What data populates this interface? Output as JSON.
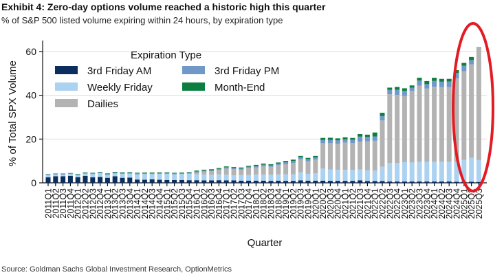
{
  "title": "Exhibit 4: Zero-day options volume reached a historic high this quarter",
  "subtitle": "% of S&P 500 listed volume expiring within 24 hours, by expiration type",
  "source": "Source: Goldman Sachs Global Investment Research, OptionMetrics",
  "chart_data": {
    "type": "bar",
    "stacked": true,
    "xlabel": "Quarter",
    "ylabel": "% of Total SPX Volume",
    "ylim": [
      0,
      65
    ],
    "yticks": [
      0,
      20,
      40,
      60
    ],
    "grid": "horizontal",
    "legend_title": "Expiration Type",
    "legend_position": "top-left",
    "annotation": "red ellipse highlighting 2024Q4-2025Q3",
    "categories": [
      "2011Q1",
      "2011Q2",
      "2011Q3",
      "2011Q4",
      "2012Q1",
      "2012Q2",
      "2012Q3",
      "2012Q4",
      "2013Q1",
      "2013Q2",
      "2013Q3",
      "2013Q4",
      "2014Q1",
      "2014Q2",
      "2014Q3",
      "2014Q4",
      "2015Q1",
      "2015Q2",
      "2015Q3",
      "2015Q4",
      "2016Q1",
      "2016Q2",
      "2016Q3",
      "2016Q4",
      "2017Q1",
      "2017Q2",
      "2017Q3",
      "2017Q4",
      "2018Q1",
      "2018Q2",
      "2018Q3",
      "2018Q4",
      "2019Q1",
      "2019Q2",
      "2019Q3",
      "2019Q4",
      "2020Q1",
      "2020Q2",
      "2020Q3",
      "2020Q4",
      "2021Q1",
      "2021Q2",
      "2021Q3",
      "2021Q4",
      "2022Q1",
      "2022Q2",
      "2022Q3",
      "2022Q4",
      "2023Q1",
      "2023Q2",
      "2023Q3",
      "2023Q4",
      "2024Q1",
      "2024Q2",
      "2024Q3",
      "2024Q4",
      "2025Q1",
      "2025Q2",
      "2025Q3"
    ],
    "series": [
      {
        "name": "3rd Friday AM",
        "color": "#0b2e5e",
        "values": [
          2.5,
          3.0,
          3.0,
          3.2,
          2.6,
          3.2,
          2.5,
          2.7,
          2.3,
          3.0,
          2.3,
          2.4,
          1.5,
          1.4,
          1.6,
          1.4,
          1.3,
          1.3,
          1.3,
          1.2,
          1.2,
          1.1,
          1.1,
          1.2,
          1.1,
          1.1,
          1.0,
          1.0,
          1.0,
          1.0,
          0.9,
          1.0,
          0.9,
          0.9,
          1.1,
          1.0,
          1.0,
          1.0,
          0.9,
          0.9,
          0.9,
          0.9,
          1.1,
          0.8,
          0.8,
          0.8,
          0.6,
          0.6,
          0.6,
          0.6,
          0.6,
          0.6,
          0.6,
          0.6,
          0.6,
          0.5,
          0.5,
          0.5,
          0.4
        ]
      },
      {
        "name": "Weekly Friday",
        "color": "#acd2f2",
        "values": [
          1.0,
          0.8,
          0.8,
          0.8,
          0.8,
          1.0,
          1.5,
          1.7,
          1.3,
          1.3,
          1.8,
          1.8,
          2.4,
          2.6,
          2.4,
          2.7,
          2.8,
          2.6,
          2.7,
          3.0,
          2.7,
          2.7,
          2.6,
          2.7,
          2.6,
          2.3,
          2.5,
          2.6,
          2.8,
          2.8,
          2.8,
          2.8,
          3.0,
          3.0,
          3.7,
          3.1,
          3.4,
          5.5,
          5.2,
          5.0,
          5.0,
          5.0,
          5.0,
          5.0,
          4.8,
          6.5,
          8.5,
          8.5,
          8.8,
          8.7,
          9.0,
          9.0,
          9.0,
          9.0,
          9.0,
          9.0,
          10.0,
          11.0,
          10.0
        ]
      },
      {
        "name": "Dailies",
        "color": "#b3b3b3",
        "values": [
          0,
          0,
          0,
          0,
          0,
          0,
          0,
          0,
          0,
          0,
          0,
          0,
          0,
          0,
          0,
          0,
          0,
          0,
          0,
          0,
          0.8,
          1.3,
          1.6,
          2.0,
          2.8,
          2.8,
          2.5,
          3.2,
          3.2,
          3.8,
          3.6,
          4.3,
          4.6,
          5.2,
          6.0,
          5.8,
          6.2,
          11.6,
          12.0,
          12.0,
          12.5,
          12.3,
          12.7,
          13.2,
          13.6,
          21.2,
          31.4,
          31.1,
          30.3,
          32.7,
          34.8,
          33.5,
          34.3,
          34.1,
          34.2,
          38.2,
          40.5,
          42.6,
          51.3
        ]
      },
      {
        "name": "3rd Friday PM",
        "color": "#7099c9",
        "values": [
          0.4,
          0.4,
          0.4,
          0.4,
          0.4,
          0.4,
          0.4,
          0.4,
          0.4,
          0.4,
          0.4,
          0.4,
          0.4,
          0.4,
          0.4,
          0.4,
          0.4,
          0.4,
          0.4,
          0.4,
          0.5,
          0.5,
          0.5,
          0.5,
          0.6,
          0.6,
          0.6,
          0.6,
          0.7,
          0.7,
          0.7,
          0.7,
          0.9,
          0.9,
          0.9,
          0.9,
          1.0,
          1.5,
          1.5,
          1.5,
          1.5,
          1.5,
          2.3,
          2.0,
          2.0,
          2.0,
          2.0,
          2.3,
          2.3,
          1.5,
          2.3,
          2.0,
          2.7,
          2.5,
          2.5,
          2.5,
          2.5,
          2.0,
          0.3
        ]
      },
      {
        "name": "Month-End",
        "color": "#0a7f3f",
        "values": [
          0.1,
          0.1,
          0.1,
          0.1,
          0.2,
          0.2,
          0.2,
          0.2,
          0.3,
          0.3,
          0.3,
          0.3,
          0.3,
          0.3,
          0.3,
          0.3,
          0.3,
          0.3,
          0.3,
          0.3,
          0.4,
          0.4,
          0.4,
          0.4,
          0.4,
          0.4,
          0.4,
          0.4,
          0.5,
          0.5,
          0.5,
          0.5,
          0.6,
          0.6,
          0.6,
          0.6,
          0.7,
          0.9,
          1.0,
          0.9,
          0.9,
          0.8,
          1.2,
          1.0,
          1.8,
          1.5,
          1.0,
          1.3,
          1.2,
          1.0,
          1.3,
          1.4,
          1.4,
          1.3,
          1.2,
          1.3,
          1.3,
          1.4,
          0
        ]
      }
    ],
    "legend_order": [
      "3rd Friday AM",
      "3rd Friday PM",
      "Weekly Friday",
      "Month-End",
      "Dailies"
    ],
    "highlight_color": "#e31b23"
  }
}
